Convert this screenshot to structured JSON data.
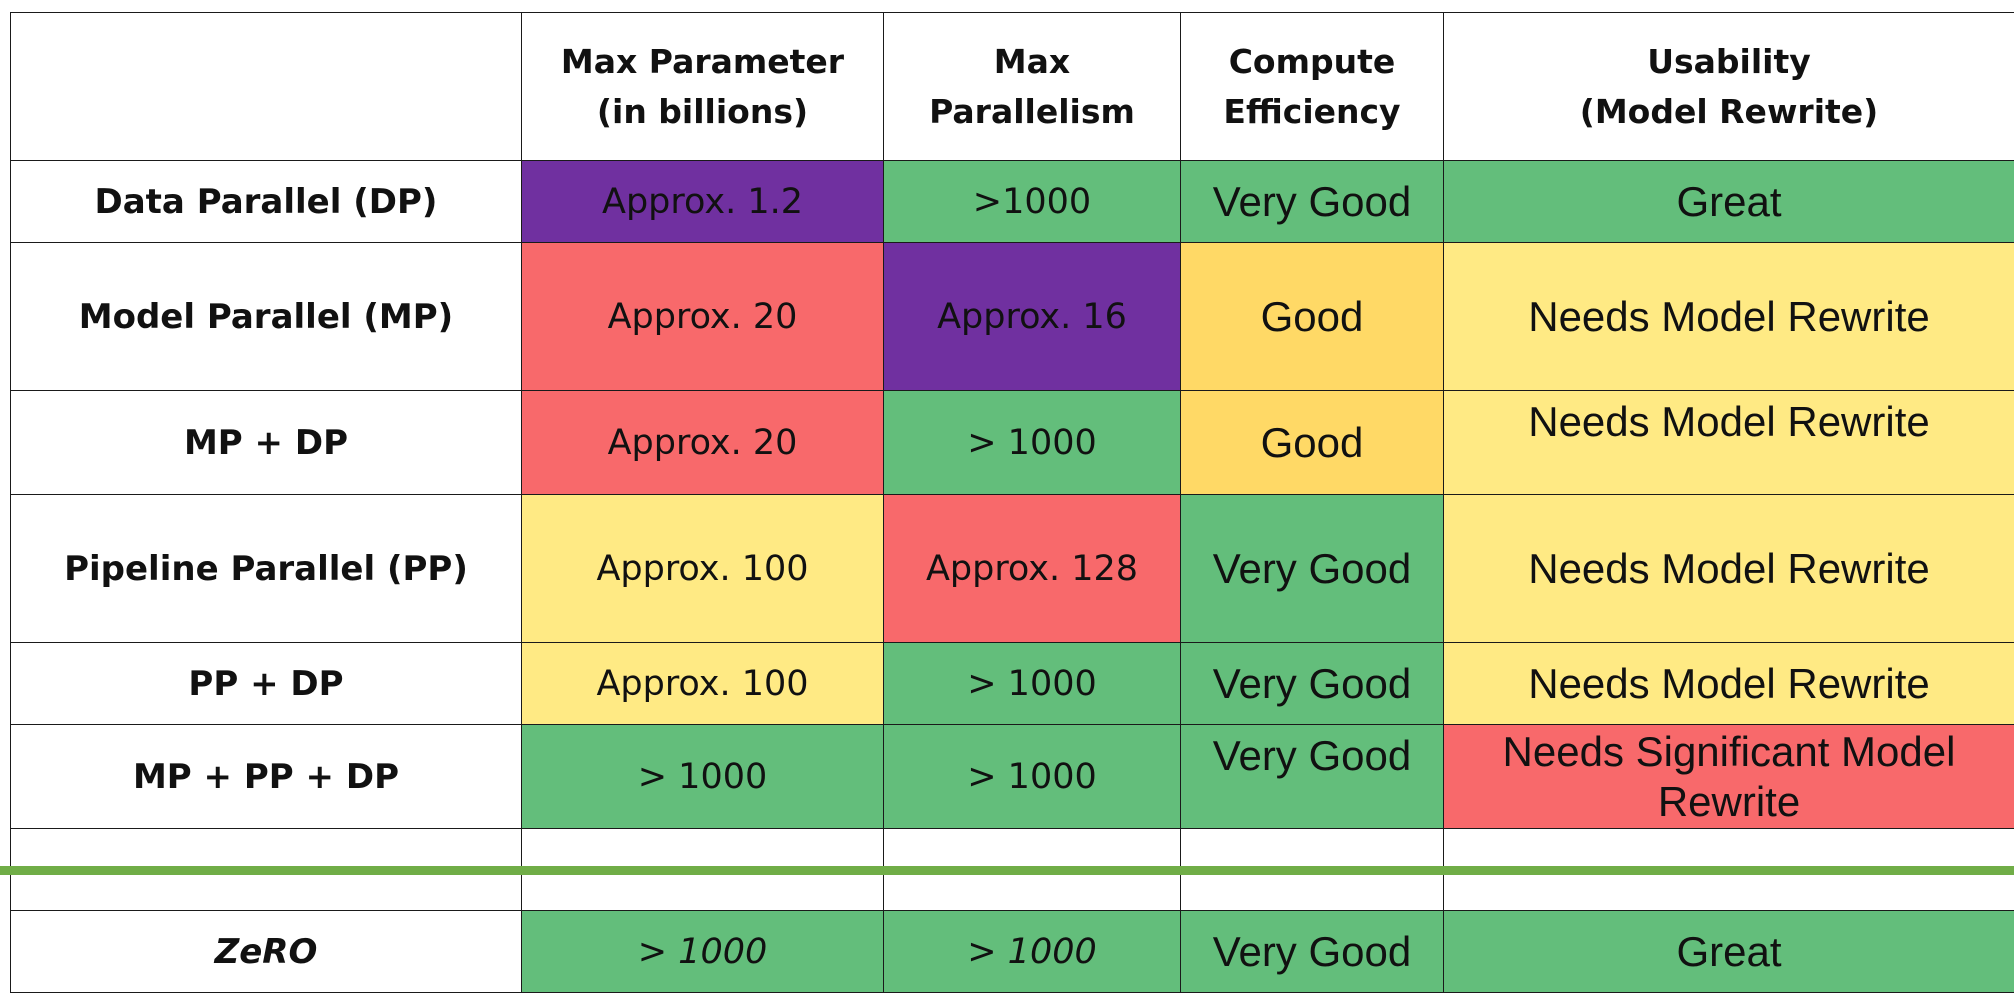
{
  "header": {
    "corner": "",
    "max_parameter": [
      "Max Parameter",
      "(in billions)"
    ],
    "max_parallelism": [
      "Max Parallelism"
    ],
    "compute_efficiency": [
      "Compute",
      "Efficiency"
    ],
    "usability": [
      "Usability",
      "(Model Rewrite)"
    ]
  },
  "rows": [
    {
      "name": "Data Parallel (DP)",
      "max_parameter": "Approx. 1.2",
      "max_parallelism": ">1000",
      "compute_efficiency": "Very Good",
      "usability": "Great"
    },
    {
      "name": "Model Parallel (MP)",
      "max_parameter": "Approx. 20",
      "max_parallelism": "Approx. 16",
      "compute_efficiency": "Good",
      "usability": "Needs Model Rewrite"
    },
    {
      "name": "MP + DP",
      "max_parameter": "Approx. 20",
      "max_parallelism": "> 1000",
      "compute_efficiency": "Good",
      "usability": "Needs Model Rewrite"
    },
    {
      "name": "Pipeline Parallel (PP)",
      "max_parameter": "Approx. 100",
      "max_parallelism": "Approx. 128",
      "compute_efficiency": "Very Good",
      "usability": "Needs Model Rewrite"
    },
    {
      "name": "PP + DP",
      "max_parameter": "Approx. 100",
      "max_parallelism": "> 1000",
      "compute_efficiency": "Very Good",
      "usability": "Needs Model Rewrite"
    },
    {
      "name": "MP + PP + DP",
      "max_parameter": "> 1000",
      "max_parallelism": "> 1000",
      "compute_efficiency": "Very Good",
      "usability": "Needs Significant Model Rewrite"
    }
  ],
  "zero_row": {
    "name": "ZeRO",
    "max_parameter": "> 1000",
    "max_parallelism": "> 1000",
    "compute_efficiency": "Very Good",
    "usability": "Great"
  },
  "colors": {
    "green": "#63be7b",
    "purple": "#7030a0",
    "red": "#f8696b",
    "yellow": "#ffea84",
    "orange": "#ffd966",
    "divider": "#70ad47"
  }
}
